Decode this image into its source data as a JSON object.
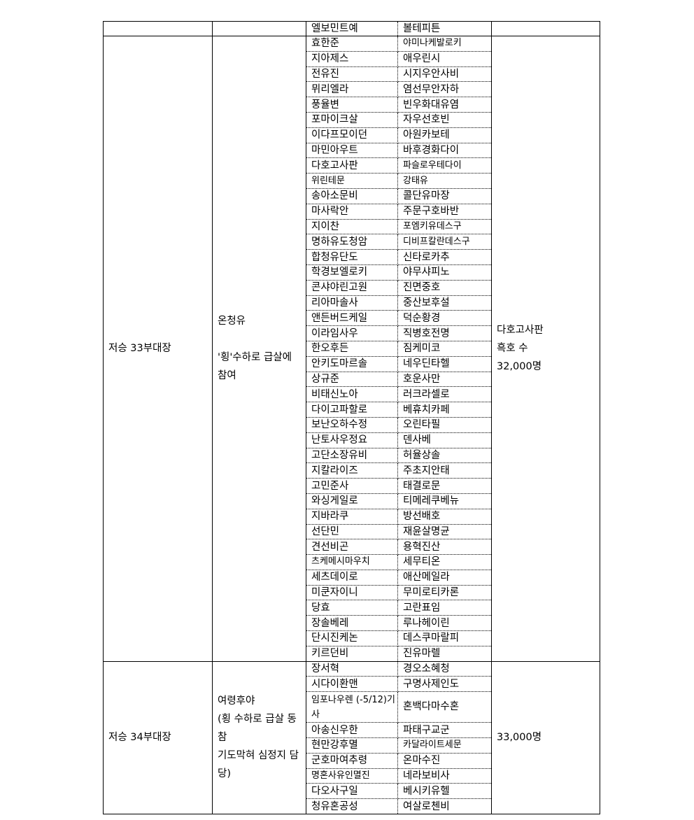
{
  "header": {
    "col1": "",
    "col2": "",
    "col3": "엘보민트예",
    "col4": "볼테피튼",
    "col5": ""
  },
  "groups": [
    {
      "unit": "저승 33부대장",
      "desc_lines": [
        "온청유",
        "",
        "'횡'수하로  급살에 참여"
      ],
      "note_lines": [
        "다호고사판",
        "흑호 수",
        "32,000명"
      ],
      "rows": [
        [
          "효한준",
          "야미나케발로키"
        ],
        [
          "지아제스",
          "애우린시"
        ],
        [
          "전유진",
          "시지우안사비"
        ],
        [
          "뮈리엘라",
          "염선무안자하"
        ],
        [
          "풍율변",
          "빈우화대유염"
        ],
        [
          "포마이크살",
          "자우선호빈"
        ],
        [
          "이다프모이던",
          "아원카보테"
        ],
        [
          "마민아우트",
          "바후경화다이"
        ],
        [
          "다호고사판",
          "파슬로우테다이"
        ],
        [
          "위린테문",
          "강태유"
        ],
        [
          "송아소문비",
          "콜단유마장"
        ],
        [
          "마사락안",
          "주문구호바반"
        ],
        [
          "지이찬",
          "포엠키유데스구"
        ],
        [
          "명하유도청암",
          "디비프칼란데스구"
        ],
        [
          "합청유단도",
          "신타로카추"
        ],
        [
          "학경보엘로키",
          "야무샤피노"
        ],
        [
          "콘샤야린고원",
          "진면중호"
        ],
        [
          "리아마솔사",
          "중산보후설"
        ],
        [
          "앤든버드케일",
          "덕순황경"
        ],
        [
          "이라임사우",
          "직병호전명"
        ],
        [
          "한오후든",
          "짐케미코"
        ],
        [
          "안키도마르솔",
          "네우딘타헬"
        ],
        [
          "상규준",
          "호운사만"
        ],
        [
          "비태신노아",
          "러크라셀로"
        ],
        [
          "다이고파할로",
          "베휴치카페"
        ],
        [
          "보난오하수정",
          "오린타필"
        ],
        [
          "난토사우정요",
          "덴사베"
        ],
        [
          "고단소장유비",
          "허율상솔"
        ],
        [
          "지칼라이즈",
          "주초지안태"
        ],
        [
          "고민준사",
          "태결로문"
        ],
        [
          "와싱게일로",
          "티메레쿠베뉴"
        ],
        [
          "지바라쿠",
          "방선배호"
        ],
        [
          "선단민",
          "재윤살명균"
        ],
        [
          "견선비곤",
          "용혁진산"
        ],
        [
          "츠케메시마우치",
          "세무티온"
        ],
        [
          "세츠데이로",
          "애산메일라"
        ],
        [
          "미쿤자이니",
          "무미로티카론"
        ],
        [
          "당효",
          "고란표임"
        ],
        [
          "장솔베레",
          "루나헤이린"
        ],
        [
          "단시진케논",
          "데스쿠마랄피"
        ],
        [
          "키르던비",
          "진유마렐"
        ]
      ]
    },
    {
      "unit": "저승 34부대장",
      "desc_lines": [
        "여령후야",
        "(횡 수하로 급살 동참",
        "기도막혀 심정지 담당)"
      ],
      "note_lines": [
        "33,000명"
      ],
      "rows": [
        [
          "장서혁",
          "경오소혜청"
        ],
        [
          "시다이환맨",
          "구명사제인도"
        ],
        [
          "임포나우렌 (-5/12)기사",
          "혼백다마수혼"
        ],
        [
          "아송신우한",
          "파태구교군"
        ],
        [
          "현만강후멸",
          "카달라이트세문"
        ],
        [
          "군호마여추령",
          "온마수진"
        ],
        [
          "명혼사유인멸진",
          "네라보비사"
        ],
        [
          "다오사구일",
          "베시키유헬"
        ],
        [
          "청유혼공성",
          "여살로첸비"
        ]
      ]
    }
  ]
}
